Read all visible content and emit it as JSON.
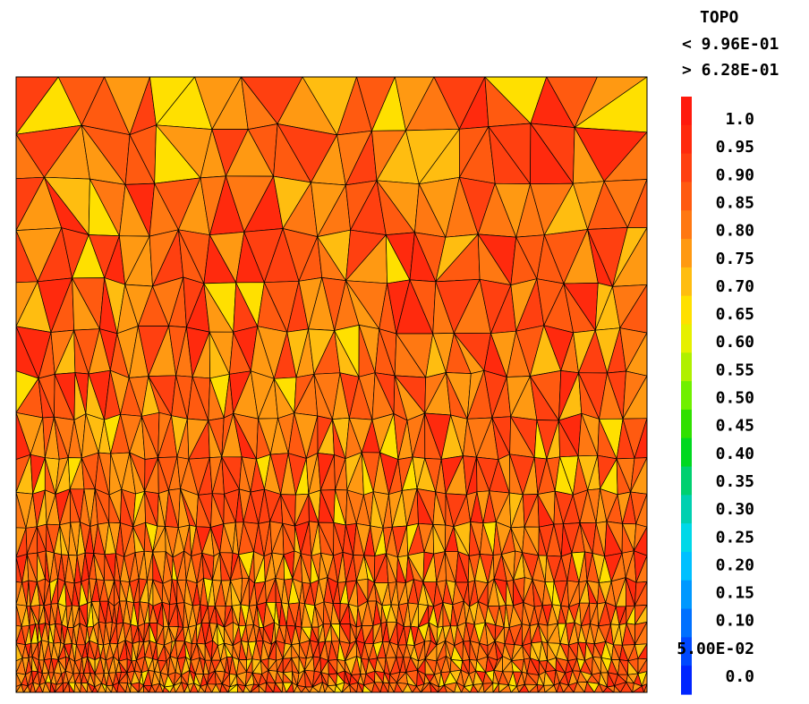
{
  "chart_data": {
    "type": "heatmap",
    "title": "TOPO",
    "xlabel": "",
    "ylabel": "",
    "value_range_text": {
      "max": "< 9.96E-01",
      "min": "> 6.28E-01"
    },
    "value_range": [
      0.628,
      0.996
    ],
    "colorbar": {
      "tick_labels": [
        "1.0",
        "0.95",
        "0.90",
        "0.85",
        "0.80",
        "0.75",
        "0.70",
        "0.65",
        "0.60",
        "0.55",
        "0.50",
        "0.45",
        "0.40",
        "0.35",
        "0.30",
        "0.25",
        "0.20",
        "0.15",
        "0.10",
        "5.00E-02",
        "0.0"
      ],
      "tick_values": [
        1.0,
        0.95,
        0.9,
        0.85,
        0.8,
        0.75,
        0.7,
        0.65,
        0.6,
        0.55,
        0.5,
        0.45,
        0.4,
        0.35,
        0.3,
        0.25,
        0.2,
        0.15,
        0.1,
        0.05,
        0.0
      ],
      "range": [
        0.0,
        1.0
      ],
      "colors_top_to_bottom": [
        "#ff1a0d",
        "#ff2a0d",
        "#ff4010",
        "#ff5a10",
        "#ff7812",
        "#ff9912",
        "#ffbd10",
        "#ffe000",
        "#e6f000",
        "#b0f000",
        "#70f000",
        "#30e000",
        "#00d820",
        "#00d070",
        "#00d0b0",
        "#00d8e8",
        "#00c0ff",
        "#0098ff",
        "#0070ff",
        "#0048ff",
        "#0024ff"
      ]
    },
    "mesh": {
      "domain": "square",
      "refinement": "finer toward bottom-left corner",
      "edge_color": "#000000"
    }
  }
}
